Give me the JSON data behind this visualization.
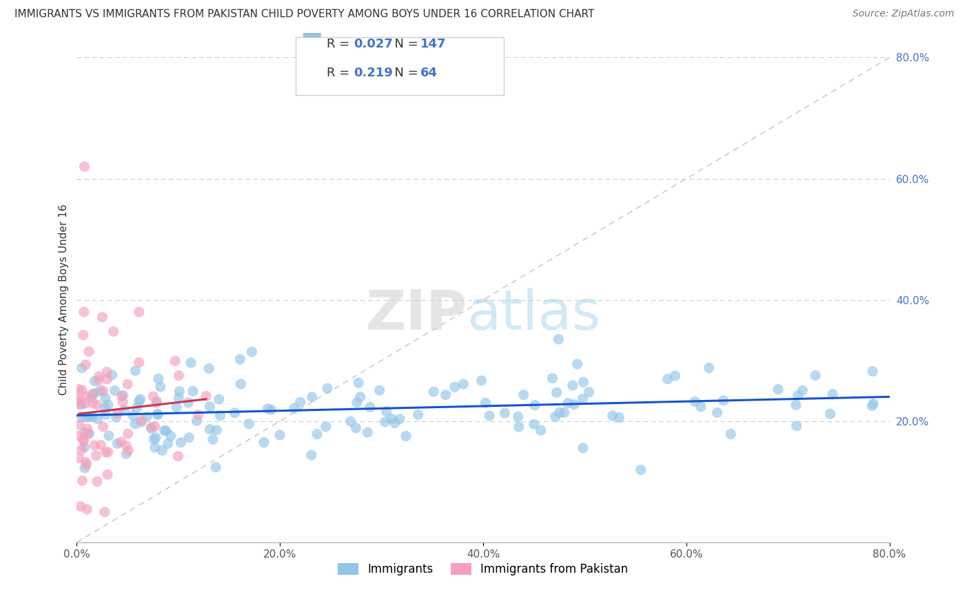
{
  "title": "IMMIGRANTS VS IMMIGRANTS FROM PAKISTAN CHILD POVERTY AMONG BOYS UNDER 16 CORRELATION CHART",
  "source": "Source: ZipAtlas.com",
  "ylabel": "Child Poverty Among Boys Under 16",
  "R_blue": 0.027,
  "N_blue": 147,
  "R_pink": 0.219,
  "N_pink": 64,
  "blue_color": "#92C5E8",
  "pink_color": "#F5A0BC",
  "trend_blue": "#1155CC",
  "trend_pink": "#CC3355",
  "ref_line_color": "#CCCCCC",
  "legend_label_blue": "Immigrants",
  "legend_label_pink": "Immigrants from Pakistan",
  "xlim": [
    0,
    80
  ],
  "ylim": [
    0,
    80
  ],
  "xticks": [
    0,
    20,
    40,
    60,
    80
  ],
  "yticks": [
    0,
    20,
    40,
    60,
    80
  ],
  "xticklabels": [
    "0.0%",
    "20.0%",
    "40.0%",
    "60.0%",
    "80.0%"
  ],
  "yticklabels": [
    "",
    "20.0%",
    "40.0%",
    "60.0%",
    "80.0%"
  ]
}
